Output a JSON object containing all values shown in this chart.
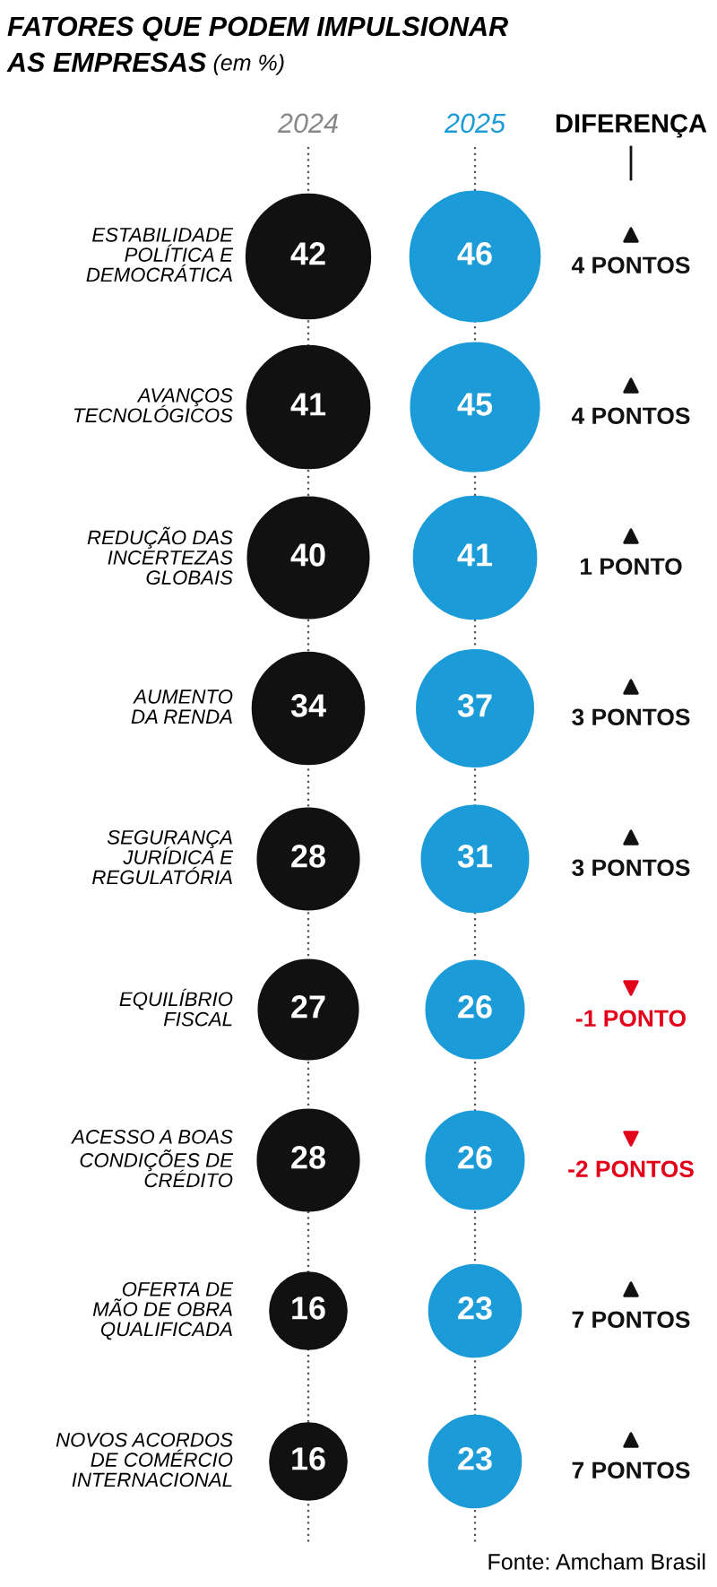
{
  "chart_data": {
    "type": "other",
    "title": "FATORES QUE PODEM IMPULSIONAR\nAS EMPRESAS",
    "subtitle": "(em %)",
    "categories": [
      "ESTABILIDADE\nPOLÍTICA E\nDEMOCRÁTICA",
      "AVANÇOS\nTECNOLÓGICOS",
      "REDUÇÃO DAS\nINCERTEZAS\nGLOBAIS",
      "AUMENTO\nDA RENDA",
      "SEGURANÇA\nJURÍDICA E\nREGULATÓRIA",
      "EQUILÍBRIO\nFISCAL",
      "ACESSO A BOAS\nCONDIÇÕES DE\nCRÉDITO",
      "OFERTA DE\nMÃO DE OBRA\nQUALIFICADA",
      "NOVOS ACORDOS\nDE COMÉRCIO\nINTERNACIONAL"
    ],
    "series": [
      {
        "name": "2024",
        "color": "#111111",
        "values": [
          42,
          41,
          40,
          34,
          28,
          27,
          28,
          16,
          16
        ]
      },
      {
        "name": "2025",
        "color": "#1b9bd7",
        "values": [
          46,
          45,
          41,
          37,
          31,
          26,
          26,
          23,
          23
        ]
      },
      {
        "name": "DIFERENÇA",
        "colors": [
          "#111111",
          "#111111",
          "#111111",
          "#111111",
          "#111111",
          "#e3001b",
          "#e3001b",
          "#111111",
          "#111111"
        ],
        "values": [
          4,
          4,
          1,
          3,
          3,
          -1,
          -2,
          7,
          7
        ],
        "value_labels": [
          "4 PONTOS",
          "4 PONTOS",
          "1 PONTO",
          "3 PONTOS",
          "3 PONTOS",
          "-1 PONTO",
          "-2 PONTOS",
          "7 PONTOS",
          "7 PONTOS"
        ]
      }
    ],
    "data_labels": true,
    "annotations": [
      "Fonte: Amcham Brasil"
    ]
  }
}
